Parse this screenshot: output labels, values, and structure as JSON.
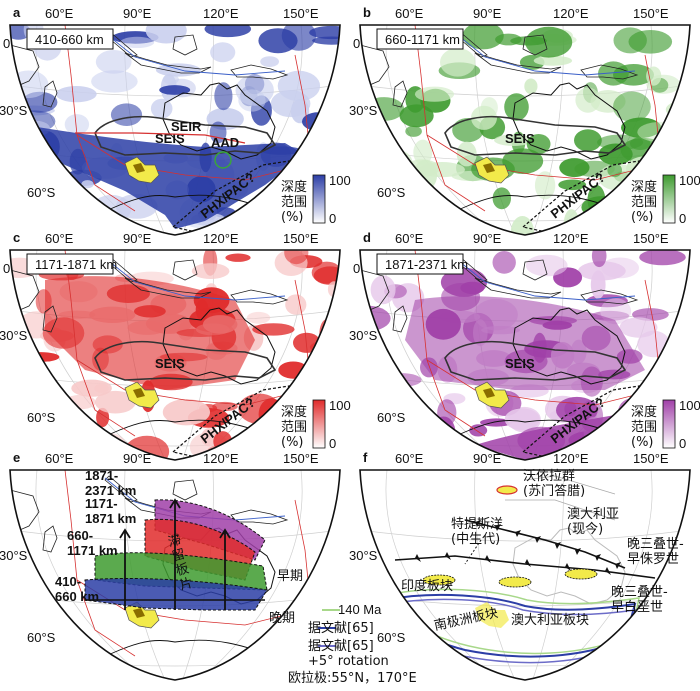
{
  "panels": [
    {
      "letter": "a",
      "range": "410-660 km",
      "color": "#2c3ea6",
      "light": "#c9cfee",
      "cbar_label": "深度\n范围\n(%)",
      "cbar_max": "100",
      "cbar_min": "0"
    },
    {
      "letter": "b",
      "range": "660-1171 km",
      "color": "#3e9b2f",
      "light": "#d2ecc8",
      "cbar_label": "深度\n范围\n(%)",
      "cbar_max": "100",
      "cbar_min": "0"
    },
    {
      "letter": "c",
      "range": "1171-1871 km",
      "color": "#e02b2b",
      "light": "#f7c9c9",
      "cbar_label": "深度\n范围\n(%)",
      "cbar_max": "100",
      "cbar_min": "0"
    },
    {
      "letter": "d",
      "range": "1871-2371 km",
      "color": "#a040a8",
      "light": "#e6c8ea",
      "cbar_label": "深度\n范围\n(%)",
      "cbar_max": "100",
      "cbar_min": "0"
    }
  ],
  "longitude_labels": [
    "60°E",
    "90°E",
    "120°E",
    "150°E"
  ],
  "latitude_labels": [
    "0",
    "30°S",
    "60°S"
  ],
  "feature_labels": {
    "seis": "SEIS",
    "seir": "SEIR",
    "aad": "AAD",
    "phx": "PHX/PAC?"
  },
  "panel_e": {
    "letter": "e",
    "depth_labels": [
      "1871-\n2371 km",
      "1171-\n1871 km",
      "660-\n1171 km",
      "410-\n660 km"
    ],
    "depth_colors": [
      "#a040a8",
      "#e02b2b",
      "#3e9b2f",
      "#2c3ea6"
    ],
    "slab_text": "滞留板片",
    "early": "早期",
    "late": "晚期"
  },
  "panel_f": {
    "letter": "f",
    "labels": {
      "wolayang": "沃依拉群\n(苏门答腊)",
      "tethys": "特提斯洋\n(中生代)",
      "australia_now": "澳大利亚\n(现今)",
      "late_tri_early_jur": "晚三叠世-\n早侏罗世",
      "late_tri_early_cret": "晚三叠世-\n早白垩世",
      "india": "印度板块",
      "antarctica": "南极洲板块",
      "australia_plate": "澳大利亚板块"
    }
  },
  "legend": {
    "age": "140 Ma",
    "ref1": "据文献[65]",
    "ref2": "据文献[65]\n+5° rotation",
    "euler": "欧拉极:55°N，170°E",
    "line_colors": [
      "#a8d88a",
      "#2c3ea6",
      "#6c6cc8"
    ]
  }
}
